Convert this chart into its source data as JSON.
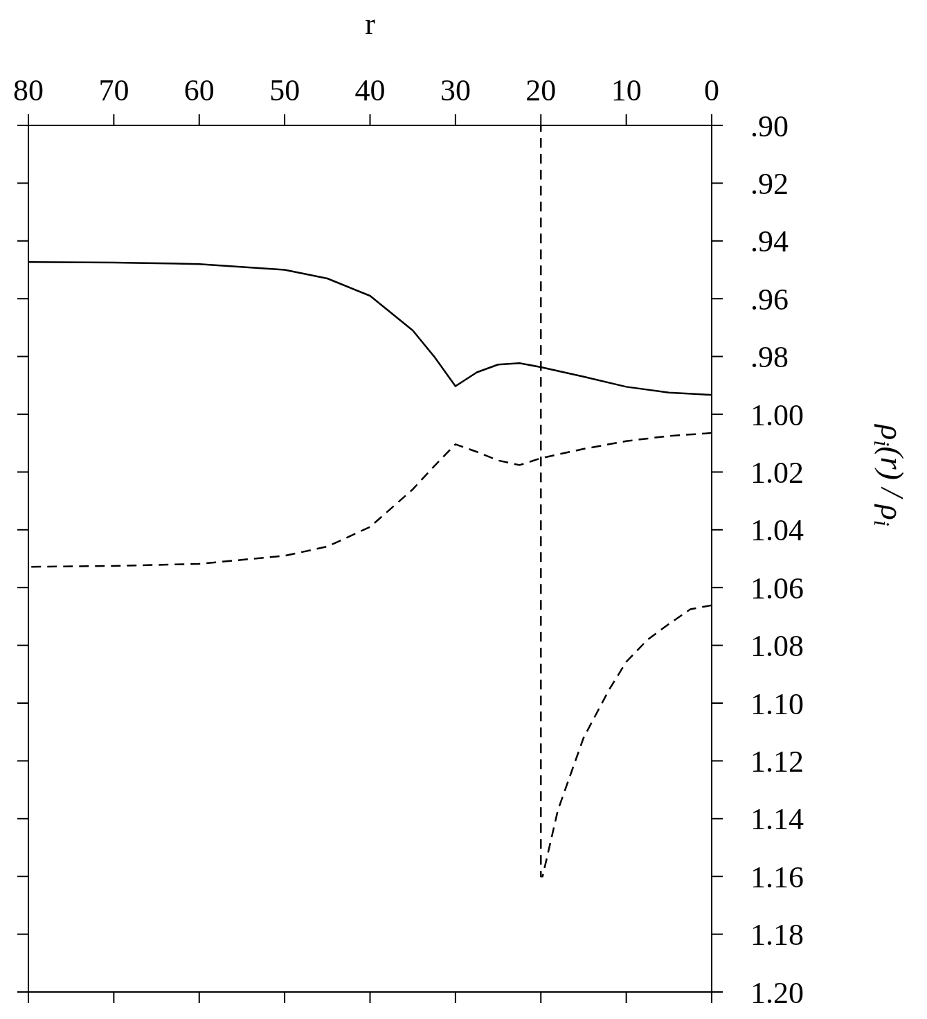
{
  "chart_data": {
    "type": "line",
    "xlabel": "r",
    "ylabel": "ρ$_{i}$(r) / ρ$_{i}$",
    "xlim": [
      80,
      0
    ],
    "xticks": [
      0,
      10,
      20,
      30,
      40,
      50,
      60,
      70,
      80
    ],
    "ylim": [
      1.2,
      0.9
    ],
    "yticks": [
      {
        "value": 0.9,
        "label": ".90"
      },
      {
        "value": 0.92,
        "label": ".92"
      },
      {
        "value": 0.94,
        "label": ".94"
      },
      {
        "value": 0.96,
        "label": ".96"
      },
      {
        "value": 0.98,
        "label": ".98"
      },
      {
        "value": 1.0,
        "label": "1.00"
      },
      {
        "value": 1.02,
        "label": "1.02"
      },
      {
        "value": 1.04,
        "label": "1.04"
      },
      {
        "value": 1.06,
        "label": "1.06"
      },
      {
        "value": 1.08,
        "label": "1.08"
      },
      {
        "value": 1.1,
        "label": "1.10"
      },
      {
        "value": 1.12,
        "label": "1.12"
      },
      {
        "value": 1.14,
        "label": "1.14"
      },
      {
        "value": 1.16,
        "label": "1.16"
      },
      {
        "value": 1.18,
        "label": "1.18"
      },
      {
        "value": 1.2,
        "label": "1.20"
      }
    ],
    "grid": false,
    "marker": "none",
    "series": [
      {
        "color": "#000000",
        "line_style": "solid",
        "x": [
          0,
          5,
          10,
          15,
          20,
          22.5,
          25,
          27.5,
          30,
          32.5,
          35,
          40,
          45,
          50,
          60,
          70,
          80
        ],
        "values": [
          0.9933,
          0.9925,
          0.9905,
          0.987,
          0.9837,
          0.9823,
          0.9828,
          0.9855,
          0.9903,
          0.98,
          0.971,
          0.959,
          0.953,
          0.95,
          0.948,
          0.9475,
          0.9473
        ]
      },
      {
        "color": "#000000",
        "line_style": "dashed",
        "x": [
          0,
          5,
          10,
          15,
          20,
          22.5,
          25,
          27.5,
          30,
          32.5,
          35,
          40,
          45,
          50,
          60,
          70,
          80
        ],
        "values": [
          1.0065,
          1.0075,
          1.0093,
          1.012,
          1.0152,
          1.0176,
          1.016,
          1.013,
          1.0104,
          1.018,
          1.026,
          1.039,
          1.0458,
          1.049,
          1.0518,
          1.0525,
          1.0528
        ]
      },
      {
        "color": "#000000",
        "line_style": "dashed",
        "x": [
          0,
          2.5,
          5,
          7.5,
          10,
          12,
          15,
          18,
          19.8,
          20,
          20
        ],
        "values": [
          1.0661,
          1.0675,
          1.0726,
          1.078,
          1.0857,
          1.0953,
          1.112,
          1.137,
          1.16,
          1.16,
          0.9
        ]
      }
    ]
  }
}
